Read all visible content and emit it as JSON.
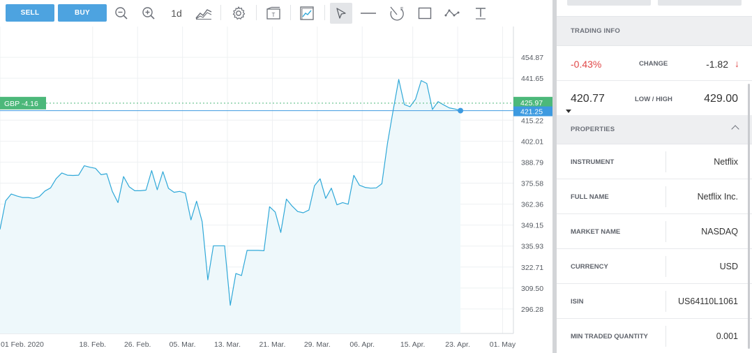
{
  "toolbar": {
    "sell_label": "SELL",
    "buy_label": "BUY",
    "timeframe_label": "1d",
    "icons": [
      "zoom-out-icon",
      "zoom-in-icon",
      "chart-type-icon",
      "gear-icon",
      "template-icon",
      "indicator-icon",
      "cursor-icon",
      "horizontal-line-icon",
      "fibonacci-icon",
      "rectangle-icon",
      "path-icon",
      "text-tool-icon"
    ]
  },
  "chart": {
    "position_label": "GBP -4.16",
    "current_price_tag": "425.97",
    "line_price_tag": "421.25",
    "line_color": "#2fa8d8",
    "fill_color": "#eef8fb",
    "position_color": "#4cb87a",
    "price_tag_color": "#3d9ae0"
  },
  "chart_data": {
    "type": "area",
    "title": "",
    "xlabel": "",
    "ylabel": "",
    "ylim": [
      283.06,
      468.09
    ],
    "grid": true,
    "y_ticks": [
      "454.87",
      "441.65",
      "415.22",
      "402.01",
      "388.79",
      "375.58",
      "362.36",
      "349.15",
      "335.93",
      "322.71",
      "309.50",
      "296.28"
    ],
    "x_ticks": [
      "01 Feb. 2020",
      "18. Feb.",
      "26. Feb.",
      "05. Mar.",
      "13. Mar.",
      "21. Mar.",
      "29. Mar.",
      "06. Apr.",
      "15. Apr.",
      "23. Apr.",
      "01. May"
    ],
    "x_tick_index": [
      0,
      16.5,
      24.5,
      32.5,
      40.5,
      48.5,
      56.5,
      64.5,
      73.5,
      81.5,
      89.5
    ],
    "series": [
      {
        "values": [
          346.4,
          364.4,
          368.7,
          367.5,
          366.5,
          366.5,
          366.0,
          367.1,
          370.6,
          372.6,
          378.4,
          382.0,
          380.6,
          380.4,
          380.6,
          386.5,
          385.6,
          384.9,
          380.9,
          381.5,
          370.4,
          363.3,
          379.7,
          373.3,
          370.8,
          370.8,
          371.2,
          383.5,
          371.4,
          382.8,
          372.3,
          369.8,
          370.4,
          369.3,
          352.4,
          364.2,
          351.3,
          314.6,
          336.1,
          336.1,
          336.1,
          298.6,
          318.6,
          317.4,
          333.2,
          333.2,
          333.2,
          333.0,
          360.7,
          357.4,
          344.5,
          365.5,
          361.2,
          357.7,
          356.9,
          358.6,
          373.9,
          378.3,
          366.0,
          372.4,
          361.9,
          363.3,
          362.3,
          380.5,
          374.3,
          372.9,
          372.4,
          372.6,
          375.2,
          400.8,
          421.2,
          440.9,
          425.1,
          423.7,
          428.5,
          440.2,
          438.4,
          422.0,
          426.9,
          424.9,
          423.0,
          422.3,
          421.25
        ]
      }
    ]
  },
  "trading_info": {
    "header": "TRADING INFO",
    "change_pct": "-0.43%",
    "change_label": "CHANGE",
    "change_value": "-1.82",
    "change_arrow": "↓",
    "low": "420.77",
    "low_high_label": "LOW / HIGH",
    "high": "429.00"
  },
  "properties": {
    "header": "PROPERTIES",
    "rows": [
      {
        "label": "INSTRUMENT",
        "value": "Netflix"
      },
      {
        "label": "FULL NAME",
        "value": "Netflix Inc."
      },
      {
        "label": "MARKET NAME",
        "value": "NASDAQ"
      },
      {
        "label": "CURRENCY",
        "value": "USD"
      },
      {
        "label": "ISIN",
        "value": "US64110L1061"
      },
      {
        "label": "MIN TRADED QUANTITY",
        "value": "0.001"
      }
    ]
  }
}
